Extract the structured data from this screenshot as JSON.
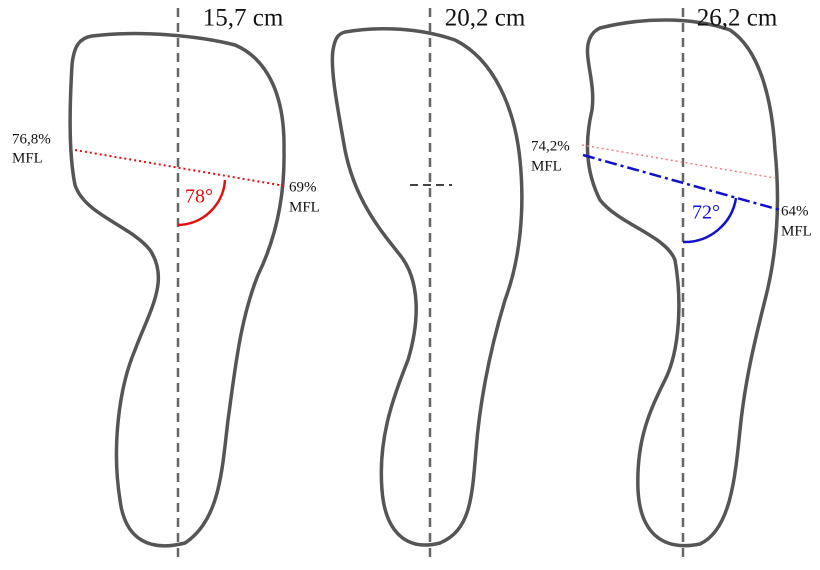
{
  "panels": [
    {
      "title": "15,7 cm",
      "left_label": {
        "value": "76,8%",
        "unit": "MFL"
      },
      "right_label": {
        "value": "69%",
        "unit": "MFL"
      },
      "angle": "78°"
    },
    {
      "title": "20,2 cm"
    },
    {
      "title": "26,2 cm",
      "left_label": {
        "value": "74,2%",
        "unit": "MFL"
      },
      "right_label": {
        "value": "64%",
        "unit": "MFL"
      },
      "angle": "72°"
    }
  ]
}
